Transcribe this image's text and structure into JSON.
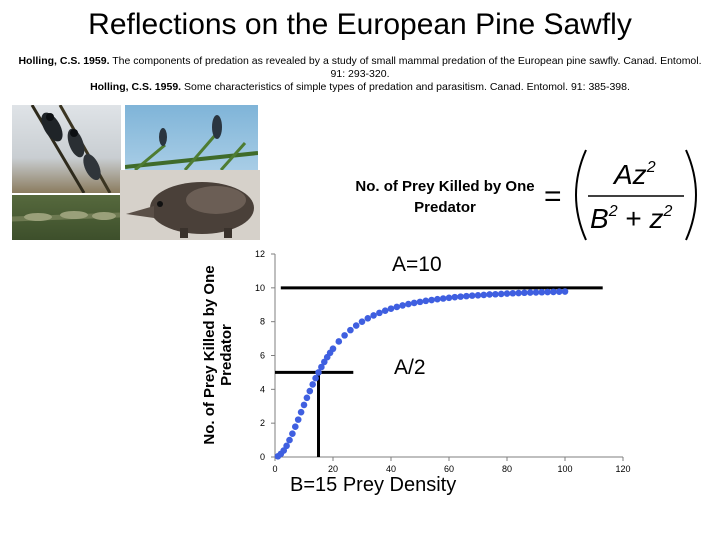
{
  "title": "Reflections on the European Pine Sawfly",
  "references": [
    {
      "author": "Holling, C.S. 1959.",
      "text": " The components of predation as revealed by a study of small mammal predation of the European pine sawfly. Canad. Entomol. 91: 293-320."
    },
    {
      "author": "Holling, C.S. 1959.",
      "text": " Some characteristics of simple types of predation and parasitism. Canad. Entomol. 91: 385-398."
    }
  ],
  "equation_label": "No. of Prey Killed by One Predator",
  "equation": {
    "equals": "=",
    "num_var": "Az",
    "num_exp": "2",
    "den_b": "B",
    "den_b_exp": "2",
    "plus": " + ",
    "den_z": "z",
    "den_z_exp": "2"
  },
  "annotations": {
    "a_line": "A=10",
    "half_line": "A/2"
  },
  "colors": {
    "curve": "#3f5fe0",
    "lines": "#000000"
  },
  "chart_data": {
    "type": "scatter",
    "title": "",
    "xlabel": "B=15 Prey Density",
    "ylabel": "No. of Prey Killed by One Predator",
    "xlim": [
      0,
      120
    ],
    "ylim": [
      0,
      12
    ],
    "xticks": [
      0,
      20,
      40,
      60,
      80,
      100,
      120
    ],
    "yticks": [
      0,
      2,
      4,
      6,
      8,
      10,
      12
    ],
    "grid": false,
    "A": 10,
    "B": 15,
    "series": [
      {
        "x": [
          1,
          2,
          3,
          4,
          5,
          6,
          7,
          8,
          9,
          10,
          11,
          12,
          13,
          14,
          15,
          16,
          17,
          18,
          19,
          20,
          22,
          24,
          26,
          28,
          30,
          32,
          34,
          36,
          38,
          40,
          42,
          44,
          46,
          48,
          50,
          52,
          54,
          56,
          58,
          60,
          62,
          64,
          66,
          68,
          70,
          72,
          74,
          76,
          78,
          80,
          82,
          84,
          86,
          88,
          90,
          92,
          94,
          96,
          98,
          100
        ],
        "y": [
          0.04,
          0.18,
          0.38,
          0.66,
          1.0,
          1.38,
          1.79,
          2.21,
          2.65,
          3.08,
          3.5,
          3.9,
          4.29,
          4.66,
          5.0,
          5.32,
          5.62,
          5.9,
          6.16,
          6.4,
          6.83,
          7.19,
          7.5,
          7.77,
          8.0,
          8.2,
          8.37,
          8.52,
          8.65,
          8.77,
          8.87,
          8.96,
          9.04,
          9.11,
          9.17,
          9.23,
          9.28,
          9.33,
          9.37,
          9.41,
          9.45,
          9.48,
          9.51,
          9.54,
          9.56,
          9.58,
          9.61,
          9.62,
          9.64,
          9.66,
          9.68,
          9.69,
          9.71,
          9.72,
          9.73,
          9.74,
          9.75,
          9.76,
          9.77,
          9.78
        ]
      }
    ],
    "reference_lines": [
      {
        "label": "A=10",
        "y": 10,
        "x_from": 2,
        "x_to": 113
      },
      {
        "label": "A/2",
        "y": 5,
        "x_from": 0,
        "x_to": 27
      },
      {
        "label": "B=15",
        "x": 15,
        "y_from": 0,
        "y_to": 5
      }
    ]
  }
}
